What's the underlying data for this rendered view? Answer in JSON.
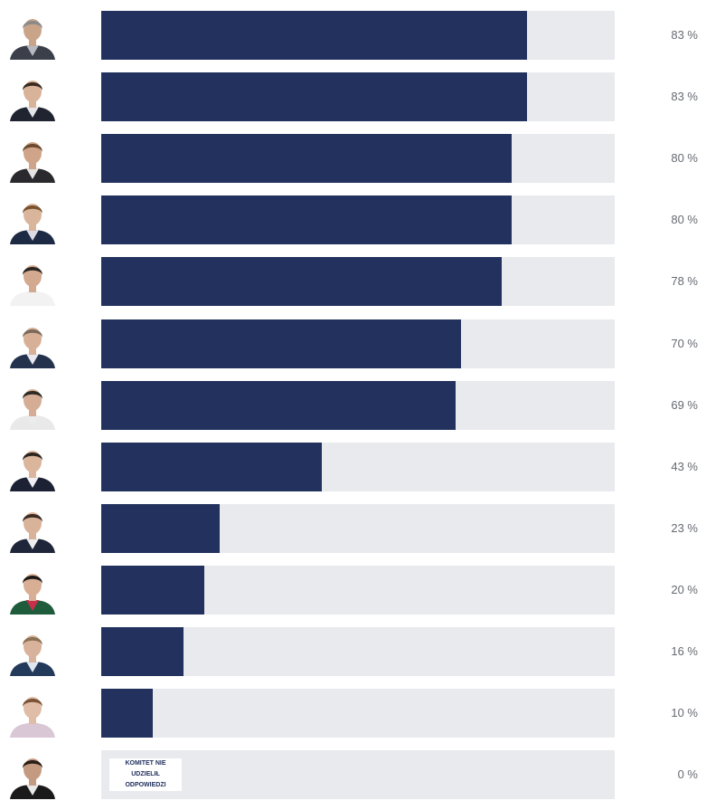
{
  "colors": {
    "bar_fill": "#22315e",
    "bar_track": "#e8eaed",
    "percent_text": "#666a70"
  },
  "rows": [
    {
      "percent": 83,
      "label": "83 %",
      "skin": "#c9a489",
      "hair": "#8a8a8a",
      "shirt": "#b8b8c0",
      "jacket": "#3a3f4a"
    },
    {
      "percent": 83,
      "label": "83 %",
      "skin": "#d8b39a",
      "hair": "#3b2a20",
      "shirt": "#e6e6ea",
      "jacket": "#1f2430"
    },
    {
      "percent": 80,
      "label": "80 %",
      "skin": "#cfa488",
      "hair": "#6b4a30",
      "shirt": "#e4e4e4",
      "jacket": "#2a2a2e"
    },
    {
      "percent": 80,
      "label": "80 %",
      "skin": "#d9b59c",
      "hair": "#7a5230",
      "shirt": "#dcdce4",
      "jacket": "#1d2a44"
    },
    {
      "percent": 78,
      "label": "78 %",
      "skin": "#d3a98f",
      "hair": "#2a2622",
      "shirt": "#f2f2f2",
      "jacket": "#f2f2f2"
    },
    {
      "percent": 70,
      "label": "70 %",
      "skin": "#d7b097",
      "hair": "#7a6a5a",
      "shirt": "#e8e8ee",
      "jacket": "#25324e"
    },
    {
      "percent": 69,
      "label": "69 %",
      "skin": "#d4ad94",
      "hair": "#2e2a26",
      "shirt": "#ececec",
      "jacket": "#e9e9e9"
    },
    {
      "percent": 43,
      "label": "43 %",
      "skin": "#dbb59c",
      "hair": "#2c241e",
      "shirt": "#f0f0f4",
      "jacket": "#1c2233"
    },
    {
      "percent": 23,
      "label": "23 %",
      "skin": "#d9b29a",
      "hair": "#3a2a22",
      "shirt": "#eeeeee",
      "jacket": "#20263a"
    },
    {
      "percent": 20,
      "label": "20 %",
      "skin": "#d8ae95",
      "hair": "#1e1a18",
      "shirt": "#c8304a",
      "jacket": "#1f5c3c"
    },
    {
      "percent": 16,
      "label": "16 %",
      "skin": "#d8b29a",
      "hair": "#8a7054",
      "shirt": "#dfe6f0",
      "jacket": "#243a5a"
    },
    {
      "percent": 10,
      "label": "10 %",
      "skin": "#e0bda6",
      "hair": "#7a5236",
      "shirt": "#d9c7d6",
      "jacket": "#d9c7d6"
    },
    {
      "percent": 0,
      "label": "0 %",
      "skin": "#c49a80",
      "hair": "#2a1e16",
      "shirt": "#e9e9e9",
      "jacket": "#1a1a1a",
      "no_answer": "KOMITET NIE UDZIELIŁ ODPOWIEDZI"
    }
  ]
}
